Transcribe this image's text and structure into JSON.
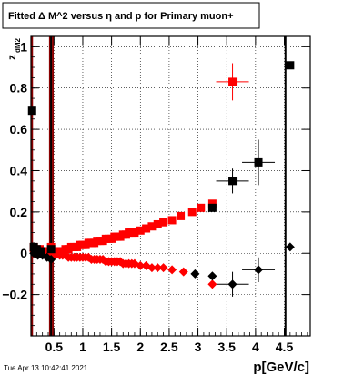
{
  "chart_data": {
    "type": "scatter",
    "title": "Fitted Δ M^2 versus η and p for Primary muon+",
    "xlabel": "p[GeV/c]",
    "ylabel": "z_dM2",
    "ylabel_main": "z",
    "ylabel_sub": "dM2",
    "timestamp": "Tue Apr 13 10:42:41 2021",
    "xlim": [
      0.1,
      4.95
    ],
    "ylim": [
      -0.4,
      1.05
    ],
    "grid": true,
    "xticks": [
      {
        "v": 0.5,
        "label": "0.5"
      },
      {
        "v": 1,
        "label": "1"
      },
      {
        "v": 1.5,
        "label": "1.5"
      },
      {
        "v": 2,
        "label": "2"
      },
      {
        "v": 2.5,
        "label": "2.5"
      },
      {
        "v": 3,
        "label": "3"
      },
      {
        "v": 3.5,
        "label": "3.5"
      },
      {
        "v": 4,
        "label": "4"
      },
      {
        "v": 4.5,
        "label": "4.5"
      }
    ],
    "yticks": [
      {
        "v": -0.2,
        "label": "−0.2"
      },
      {
        "v": 0,
        "label": "0"
      },
      {
        "v": 0.2,
        "label": "0.2"
      },
      {
        "v": 0.4,
        "label": "0.4"
      },
      {
        "v": 0.6,
        "label": "0.6"
      },
      {
        "v": 0.8,
        "label": "0.8"
      },
      {
        "v": 1,
        "label": "1"
      }
    ],
    "vertical_lines": [
      {
        "x": 0.12,
        "color": "#8b0000"
      },
      {
        "x": 0.43,
        "color": "#8b0000"
      },
      {
        "x": 0.45,
        "color": "#000000"
      },
      {
        "x": 0.48,
        "color": "#8b0000"
      },
      {
        "x": 4.52,
        "color": "#000000"
      }
    ],
    "series": [
      {
        "marker": "square",
        "color": "#ff0000",
        "points": [
          {
            "x": 0.15,
            "y": 0.03
          },
          {
            "x": 0.2,
            "y": 0.0
          },
          {
            "x": 0.25,
            "y": 0.02
          },
          {
            "x": 0.32,
            "y": 0.01
          },
          {
            "x": 0.38,
            "y": 0.0
          },
          {
            "x": 0.45,
            "y": 0.03
          },
          {
            "x": 0.5,
            "y": 0.01
          },
          {
            "x": 0.55,
            "y": 0.0
          },
          {
            "x": 0.6,
            "y": 0.01
          },
          {
            "x": 0.65,
            "y": 0.01
          },
          {
            "x": 0.7,
            "y": 0.02
          },
          {
            "x": 0.75,
            "y": 0.02
          },
          {
            "x": 0.8,
            "y": 0.03
          },
          {
            "x": 0.85,
            "y": 0.03
          },
          {
            "x": 0.9,
            "y": 0.03
          },
          {
            "x": 0.95,
            "y": 0.04
          },
          {
            "x": 1.0,
            "y": 0.04
          },
          {
            "x": 1.05,
            "y": 0.04
          },
          {
            "x": 1.1,
            "y": 0.05
          },
          {
            "x": 1.15,
            "y": 0.05
          },
          {
            "x": 1.2,
            "y": 0.05
          },
          {
            "x": 1.25,
            "y": 0.06
          },
          {
            "x": 1.3,
            "y": 0.06
          },
          {
            "x": 1.35,
            "y": 0.06
          },
          {
            "x": 1.4,
            "y": 0.07
          },
          {
            "x": 1.45,
            "y": 0.07
          },
          {
            "x": 1.5,
            "y": 0.07
          },
          {
            "x": 1.55,
            "y": 0.08
          },
          {
            "x": 1.6,
            "y": 0.08
          },
          {
            "x": 1.65,
            "y": 0.08
          },
          {
            "x": 1.7,
            "y": 0.09
          },
          {
            "x": 1.75,
            "y": 0.09
          },
          {
            "x": 1.8,
            "y": 0.1
          },
          {
            "x": 1.85,
            "y": 0.1
          },
          {
            "x": 1.9,
            "y": 0.1
          },
          {
            "x": 2.0,
            "y": 0.11
          },
          {
            "x": 2.1,
            "y": 0.12
          },
          {
            "x": 2.2,
            "y": 0.13
          },
          {
            "x": 2.3,
            "y": 0.14
          },
          {
            "x": 2.4,
            "y": 0.15
          },
          {
            "x": 2.55,
            "y": 0.16
          },
          {
            "x": 2.7,
            "y": 0.18
          },
          {
            "x": 2.9,
            "y": 0.2
          },
          {
            "x": 3.05,
            "y": 0.22
          },
          {
            "x": 3.25,
            "y": 0.24
          },
          {
            "x": 3.6,
            "y": 0.83,
            "err": 0.09
          }
        ]
      },
      {
        "marker": "diamond",
        "color": "#ff0000",
        "points": [
          {
            "x": 0.15,
            "y": 0.01
          },
          {
            "x": 0.22,
            "y": 0.0
          },
          {
            "x": 0.3,
            "y": 0.0
          },
          {
            "x": 0.38,
            "y": -0.01
          },
          {
            "x": 0.45,
            "y": -0.02
          },
          {
            "x": 0.52,
            "y": -0.01
          },
          {
            "x": 0.6,
            "y": -0.01
          },
          {
            "x": 0.65,
            "y": -0.01
          },
          {
            "x": 0.7,
            "y": -0.01
          },
          {
            "x": 0.75,
            "y": -0.02
          },
          {
            "x": 0.8,
            "y": -0.02
          },
          {
            "x": 0.85,
            "y": -0.02
          },
          {
            "x": 0.9,
            "y": -0.02
          },
          {
            "x": 0.95,
            "y": -0.02
          },
          {
            "x": 1.0,
            "y": -0.02
          },
          {
            "x": 1.05,
            "y": -0.02
          },
          {
            "x": 1.1,
            "y": -0.02
          },
          {
            "x": 1.15,
            "y": -0.03
          },
          {
            "x": 1.2,
            "y": -0.03
          },
          {
            "x": 1.25,
            "y": -0.03
          },
          {
            "x": 1.3,
            "y": -0.03
          },
          {
            "x": 1.35,
            "y": -0.03
          },
          {
            "x": 1.4,
            "y": -0.04
          },
          {
            "x": 1.45,
            "y": -0.04
          },
          {
            "x": 1.5,
            "y": -0.04
          },
          {
            "x": 1.55,
            "y": -0.04
          },
          {
            "x": 1.6,
            "y": -0.04
          },
          {
            "x": 1.65,
            "y": -0.04
          },
          {
            "x": 1.7,
            "y": -0.05
          },
          {
            "x": 1.75,
            "y": -0.05
          },
          {
            "x": 1.8,
            "y": -0.05
          },
          {
            "x": 1.85,
            "y": -0.05
          },
          {
            "x": 1.9,
            "y": -0.05
          },
          {
            "x": 2.0,
            "y": -0.06
          },
          {
            "x": 2.1,
            "y": -0.06
          },
          {
            "x": 2.2,
            "y": -0.07
          },
          {
            "x": 2.3,
            "y": -0.07
          },
          {
            "x": 2.4,
            "y": -0.07
          },
          {
            "x": 2.55,
            "y": -0.08
          },
          {
            "x": 2.75,
            "y": -0.09
          },
          {
            "x": 3.25,
            "y": -0.15
          }
        ]
      },
      {
        "marker": "square",
        "color": "#000000",
        "points": [
          {
            "x": 0.12,
            "y": 0.69
          },
          {
            "x": 0.15,
            "y": 0.03
          },
          {
            "x": 0.2,
            "y": 0.02
          },
          {
            "x": 0.28,
            "y": 0.01
          },
          {
            "x": 0.45,
            "y": 0.02
          },
          {
            "x": 3.25,
            "y": 0.22
          },
          {
            "x": 3.6,
            "y": 0.35,
            "err": 0.06
          },
          {
            "x": 4.05,
            "y": 0.44,
            "err": 0.11
          },
          {
            "x": 4.6,
            "y": 0.91
          }
        ]
      },
      {
        "marker": "diamond",
        "color": "#000000",
        "points": [
          {
            "x": 0.15,
            "y": 0.0
          },
          {
            "x": 0.22,
            "y": -0.01
          },
          {
            "x": 0.3,
            "y": -0.01
          },
          {
            "x": 0.38,
            "y": -0.02
          },
          {
            "x": 0.45,
            "y": -0.03
          },
          {
            "x": 2.95,
            "y": -0.1
          },
          {
            "x": 3.25,
            "y": -0.11
          },
          {
            "x": 3.6,
            "y": -0.15,
            "err": 0.06
          },
          {
            "x": 4.05,
            "y": -0.08,
            "err": 0.06
          },
          {
            "x": 4.6,
            "y": 0.03
          }
        ]
      }
    ]
  }
}
